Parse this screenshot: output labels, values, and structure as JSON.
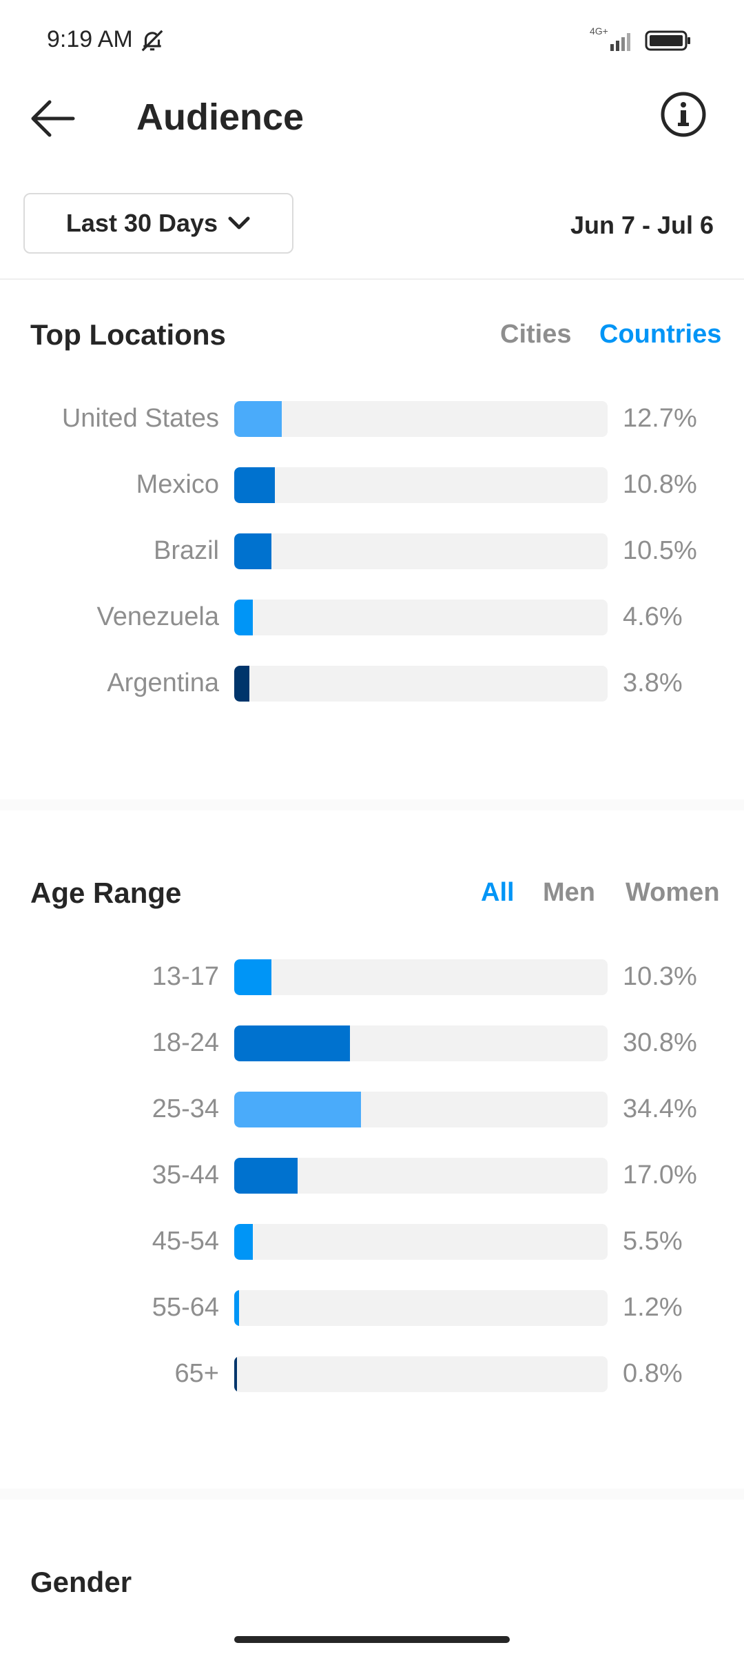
{
  "status_bar": {
    "time": "9:19 AM",
    "network": "4G+",
    "icons": [
      "bell-off-icon",
      "signal-icon",
      "battery-icon"
    ]
  },
  "header": {
    "title": "Audience",
    "back_icon": "arrow-left-icon",
    "info_icon": "info-icon"
  },
  "date_filter": {
    "range_label": "Last 30 Days",
    "dropdown_icon": "chevron-down-icon",
    "date_range": "Jun 7 - Jul 6"
  },
  "top_locations": {
    "title": "Top Locations",
    "tabs": [
      {
        "label": "Cities",
        "active": false
      },
      {
        "label": "Countries",
        "active": true
      }
    ],
    "rows": [
      {
        "label": "United States",
        "value": "12.7%",
        "fraction": 0.127,
        "color": "#4aabfa"
      },
      {
        "label": "Mexico",
        "value": "10.8%",
        "fraction": 0.108,
        "color": "#0072cf"
      },
      {
        "label": "Brazil",
        "value": "10.5%",
        "fraction": 0.1,
        "color": "#0072cf"
      },
      {
        "label": "Venezuela",
        "value": "4.6%",
        "fraction": 0.05,
        "color": "#0095f6"
      },
      {
        "label": "Argentina",
        "value": "3.8%",
        "fraction": 0.04,
        "color": "#00356b"
      }
    ]
  },
  "age_range": {
    "title": "Age Range",
    "tabs": [
      {
        "label": "All",
        "active": true
      },
      {
        "label": "Men",
        "active": false
      },
      {
        "label": "Women",
        "active": false
      }
    ],
    "rows": [
      {
        "label": "13-17",
        "value": "10.3%",
        "fraction": 0.1,
        "color": "#0095f6"
      },
      {
        "label": "18-24",
        "value": "30.8%",
        "fraction": 0.31,
        "color": "#0072cf"
      },
      {
        "label": "25-34",
        "value": "34.4%",
        "fraction": 0.34,
        "color": "#4aabfa"
      },
      {
        "label": "35-44",
        "value": "17.0%",
        "fraction": 0.17,
        "color": "#0072cf"
      },
      {
        "label": "45-54",
        "value": "5.5%",
        "fraction": 0.05,
        "color": "#0095f6"
      },
      {
        "label": "55-64",
        "value": "1.2%",
        "fraction": 0.012,
        "color": "#0095f6"
      },
      {
        "label": "65+",
        "value": "0.8%",
        "fraction": 0.008,
        "color": "#00356b"
      }
    ]
  },
  "gender": {
    "title": "Gender"
  }
}
